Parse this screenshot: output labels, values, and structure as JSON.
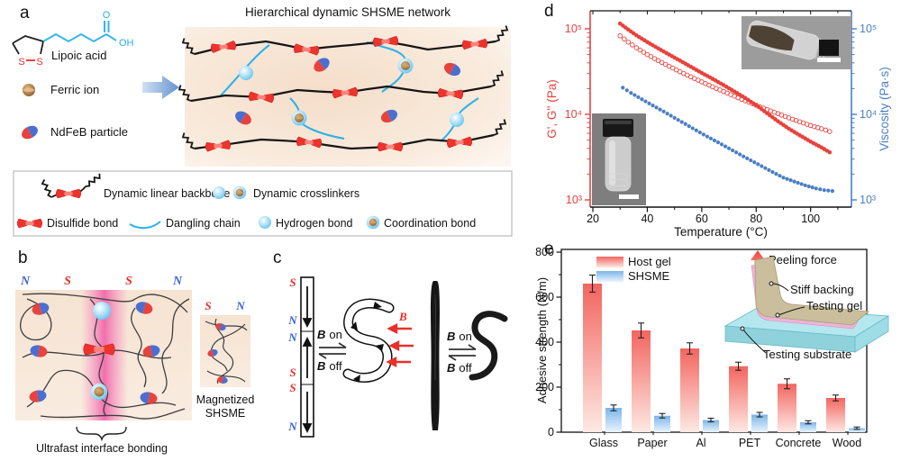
{
  "colors": {
    "red": "#e8423d",
    "blue": "#4a7fc4",
    "light_blue": "#2fb1e8",
    "pole_blue": "#3c64d6",
    "pole_red": "#e8302a",
    "host_bar_top": "#f3655f",
    "host_bar_bottom": "#fde9e4",
    "shsme_bar_top": "#7cb5e9",
    "shsme_bar_bottom": "#eaf4fd",
    "substrate_cyan": "#b4e7ee",
    "backing_tan": "#cabe9c",
    "gel_pink": "#efb3da",
    "ferric_brown": "#b97e3e",
    "peach_bg": "#f6e3d2",
    "magenta_stripe": "#f046a0"
  },
  "panel_a": {
    "label": "a",
    "lipoic_acid_label": "Lipoic acid",
    "atom_o": "O",
    "atom_oh": "OH",
    "atom_s_left": "S",
    "atom_s_right": "S",
    "ferric_ion_label": "Ferric ion",
    "ndfeb_label": "NdFeB particle",
    "network_title": "Hierarchical dynamic SHSME network",
    "legend": {
      "backbone": "Dynamic linear backbone",
      "crosslinkers": "Dynamic crosslinkers",
      "disulfide": "Disulfide bond",
      "dangling": "Dangling chain",
      "hydrogen": "Hydrogen bond",
      "coordination": "Coordination bond"
    }
  },
  "panel_b": {
    "label": "b",
    "poles_left": [
      "N",
      "S",
      "S",
      "N"
    ],
    "poles_right": [
      "S",
      "N"
    ],
    "magnetized_line1": "Magnetized",
    "magnetized_line2": "SHSME",
    "bonding_caption": "Ultrafast interface bonding"
  },
  "panel_c": {
    "label": "c",
    "poles": [
      "S",
      "N",
      "N",
      "S",
      "S",
      "N"
    ],
    "b_symbol": "B",
    "on_label": "on",
    "off_label": "off",
    "field_symbol": "B"
  },
  "panel_d": {
    "label": "d"
  },
  "panel_e": {
    "label": "e",
    "inset": {
      "peeling_force": "Peeling force",
      "stiff_backing": "Stiff backing",
      "testing_gel": "Testing gel",
      "testing_substrate": "Testing substrate"
    }
  },
  "chart_data": [
    {
      "id": "panel_d",
      "type": "scatter",
      "xlabel": "Temperature (°C)",
      "ylabel_left": "G', G'' (Pa)",
      "ylabel_right": "Viscosity (Pa·s)",
      "xlim": [
        19,
        115
      ],
      "x_ticks": [
        20,
        40,
        60,
        80,
        100
      ],
      "ylog": true,
      "ylim": [
        1000,
        160000
      ],
      "y_ticks": [
        1000,
        10000,
        100000
      ],
      "y_tick_labels": [
        "10³",
        "10⁴",
        "10⁵"
      ],
      "grid": false,
      "series": [
        {
          "name": "G'",
          "marker": "filled",
          "color": "#e8423d",
          "axis": "left",
          "step": 1.0,
          "r": 2.3,
          "points": [
            [
              30,
              115000
            ],
            [
              33,
              98000
            ],
            [
              36,
              84000
            ],
            [
              40,
              70000
            ],
            [
              44,
              59000
            ],
            [
              48,
              50000
            ],
            [
              52,
              42500
            ],
            [
              56,
              36000
            ],
            [
              60,
              30500
            ],
            [
              64,
              26000
            ],
            [
              68,
              22000
            ],
            [
              72,
              18500
            ],
            [
              76,
              15500
            ],
            [
              80,
              12800
            ],
            [
              84,
              10300
            ],
            [
              88,
              8300
            ],
            [
              92,
              6800
            ],
            [
              96,
              5700
            ],
            [
              100,
              4800
            ],
            [
              104,
              4100
            ],
            [
              107,
              3600
            ]
          ]
        },
        {
          "name": "G''",
          "marker": "open",
          "color": "#e8423d",
          "axis": "left",
          "step": 1.35,
          "r": 2.3,
          "points": [
            [
              30,
              83000
            ],
            [
              33,
              70000
            ],
            [
              36,
              60000
            ],
            [
              40,
              50000
            ],
            [
              44,
              42500
            ],
            [
              48,
              36500
            ],
            [
              52,
              31500
            ],
            [
              56,
              27500
            ],
            [
              60,
              24000
            ],
            [
              64,
              21000
            ],
            [
              68,
              18500
            ],
            [
              72,
              16300
            ],
            [
              76,
              14400
            ],
            [
              80,
              12800
            ],
            [
              84,
              11400
            ],
            [
              88,
              10200
            ],
            [
              92,
              9100
            ],
            [
              96,
              8200
            ],
            [
              100,
              7400
            ],
            [
              104,
              6800
            ],
            [
              107,
              6300
            ]
          ]
        },
        {
          "name": "Viscosity",
          "marker": "filled",
          "color": "#4a7fc4",
          "axis": "right",
          "step": 1.5,
          "r": 2.1,
          "points": [
            [
              31,
              20500
            ],
            [
              34,
              17800
            ],
            [
              38,
              15000
            ],
            [
              42,
              12700
            ],
            [
              46,
              10800
            ],
            [
              50,
              9100
            ],
            [
              54,
              7700
            ],
            [
              58,
              6500
            ],
            [
              62,
              5500
            ],
            [
              66,
              4700
            ],
            [
              70,
              4000
            ],
            [
              74,
              3400
            ],
            [
              78,
              2900
            ],
            [
              82,
              2480
            ],
            [
              86,
              2120
            ],
            [
              90,
              1820
            ],
            [
              94,
              1640
            ],
            [
              98,
              1480
            ],
            [
              102,
              1360
            ],
            [
              105,
              1300
            ],
            [
              108,
              1270
            ]
          ]
        }
      ]
    },
    {
      "id": "panel_e",
      "type": "bar",
      "categories": [
        "Glass",
        "Paper",
        "Al",
        "PET",
        "Concrete",
        "Wood"
      ],
      "series": [
        {
          "name": "Host gel",
          "values": [
            660,
            452,
            372,
            293,
            215,
            152
          ],
          "errors": [
            38,
            33,
            25,
            18,
            22,
            13
          ]
        },
        {
          "name": "SHSME",
          "values": [
            108,
            73,
            54,
            78,
            44,
            18
          ],
          "errors": [
            13,
            10,
            8,
            10,
            7,
            5
          ]
        }
      ],
      "ylabel": "Adhesive strength (N/m)",
      "ylim": [
        0,
        800
      ],
      "y_ticks": [
        0,
        200,
        400,
        600,
        800
      ],
      "legend_position": "top-left",
      "grid": false
    }
  ]
}
